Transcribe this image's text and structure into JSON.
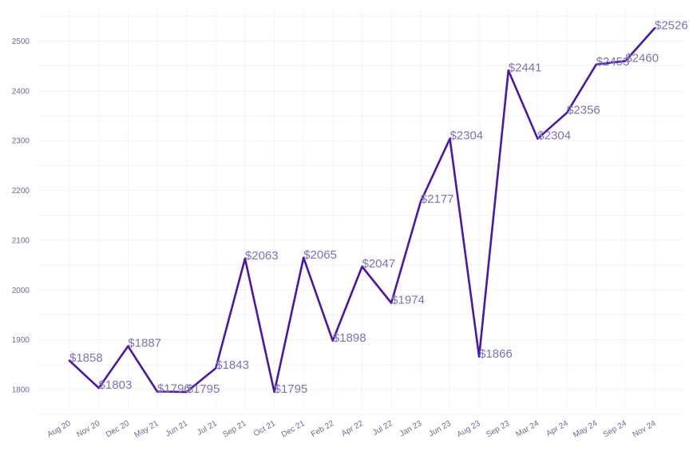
{
  "chart_data": {
    "type": "line",
    "categories": [
      "Aug 20",
      "Nov 20",
      "Dec 20",
      "May 21",
      "Jun 21",
      "Jul 21",
      "Sep 21",
      "Oct 21",
      "Dec 21",
      "Feb 22",
      "Apr 22",
      "Jul 22",
      "Jan 23",
      "Jun 23",
      "Aug 23",
      "Sep 23",
      "Mar 24",
      "Apr 24",
      "May 24",
      "Sep 24",
      "Nov 24"
    ],
    "values": [
      1858,
      1803,
      1887,
      1796,
      1795,
      1843,
      2063,
      1795,
      2065,
      1898,
      2047,
      1974,
      2177,
      2304,
      1866,
      2441,
      2304,
      2356,
      2453,
      2460,
      2526
    ],
    "data_labels": [
      "$1858",
      "$1803",
      "$1887",
      "$1796",
      "$1795",
      "$1843",
      "$2063",
      "$1795",
      "$2065",
      "$1898",
      "$2047",
      "$1974",
      "$2177",
      "$2304",
      "$1866",
      "$2441",
      "$2304",
      "$2356",
      "$2453",
      "$2460",
      "$2526"
    ],
    "yticks": [
      1800,
      1900,
      2000,
      2100,
      2200,
      2300,
      2400,
      2500
    ],
    "ylim": [
      1760,
      2560
    ],
    "grid": true,
    "line_color": "#4a17a6"
  }
}
